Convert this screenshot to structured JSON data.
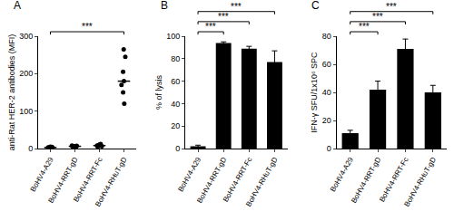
{
  "chart_data": [
    {
      "type": "scatter",
      "title": "A",
      "y_label": "anti-Rat HER-2 antibodies (MFI)",
      "categories": [
        "BoHV4-A29",
        "BoHV4-RRT-gD",
        "BoHV4-RRT-Fc",
        "BoHV4-RHuT-gD"
      ],
      "values": [
        [
          2,
          3,
          3,
          4,
          2,
          3,
          5
        ],
        [
          4,
          6,
          5,
          7,
          3,
          6,
          8
        ],
        [
          6,
          9,
          7,
          12,
          8,
          10,
          5
        ],
        [
          265,
          245,
          205,
          180,
          170,
          150,
          120
        ]
      ],
      "medians": [
        3,
        6,
        8,
        180
      ],
      "color": "#000000",
      "marker": "circle",
      "ylim": [
        0,
        300
      ],
      "yticks": [
        0,
        100,
        200,
        300
      ],
      "grid": false,
      "annotations": [
        {
          "text": "***",
          "from": "BoHV4-A29",
          "to": "BoHV4-RHuT-gD"
        }
      ]
    },
    {
      "type": "bar",
      "title": "B",
      "y_label": "% of lysis",
      "categories": [
        "BoHV4-A29",
        "BoHV4-RRT-gD",
        "BoHV4-RRT-Fc",
        "BoHV4-RHuT-gD"
      ],
      "values": [
        2,
        94,
        89,
        77
      ],
      "errors": [
        1,
        1,
        2,
        10
      ],
      "color": "#000000",
      "ylim": [
        0,
        100
      ],
      "yticks": [
        0,
        20,
        40,
        60,
        80,
        100
      ],
      "grid": false,
      "annotations": [
        {
          "text": "***",
          "from": "BoHV4-A29",
          "to": "BoHV4-RRT-gD"
        },
        {
          "text": "***",
          "from": "BoHV4-A29",
          "to": "BoHV4-RRT-Fc"
        },
        {
          "text": "***",
          "from": "BoHV4-A29",
          "to": "BoHV4-RHuT-gD"
        }
      ]
    },
    {
      "type": "bar",
      "title": "C",
      "y_label": "IFN-γ SFU/1x10⁶ SPC",
      "categories": [
        "BoHV4-A29",
        "BoHV4-RRT-gD",
        "BoHV4-RRT-Fc",
        "BoHV4-RHuT-gD"
      ],
      "values": [
        11,
        42,
        71,
        40
      ],
      "errors": [
        2,
        6,
        7,
        5
      ],
      "color": "#000000",
      "ylim": [
        0,
        80
      ],
      "yticks": [
        0,
        20,
        40,
        60,
        80
      ],
      "grid": false,
      "annotations": [
        {
          "text": "***",
          "from": "BoHV4-A29",
          "to": "BoHV4-RRT-gD"
        },
        {
          "text": "***",
          "from": "BoHV4-A29",
          "to": "BoHV4-RRT-Fc"
        },
        {
          "text": "***",
          "from": "BoHV4-A29",
          "to": "BoHV4-RHuT-gD"
        }
      ]
    }
  ]
}
